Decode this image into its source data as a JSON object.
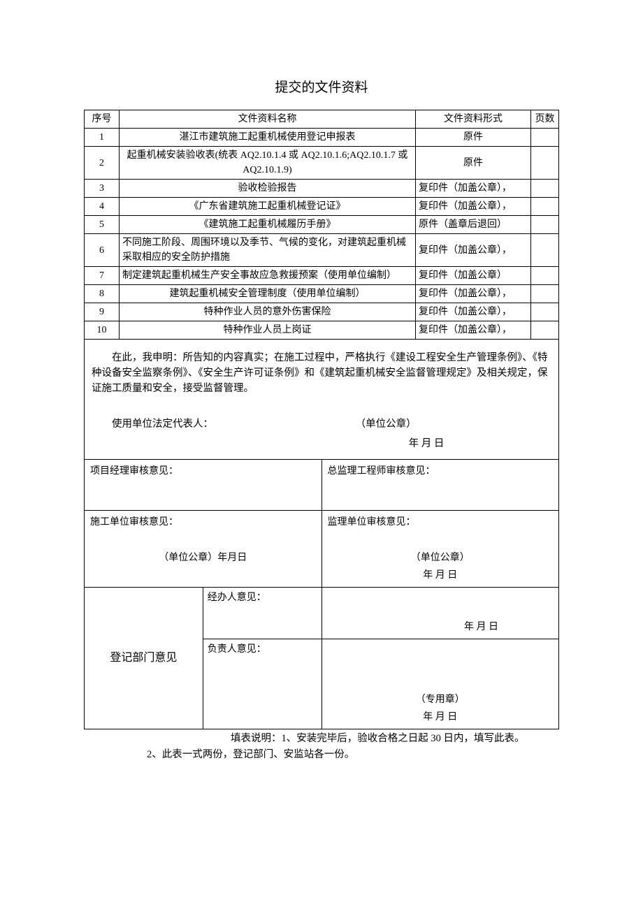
{
  "title": "提交的文件资料",
  "headers": {
    "seq": "序号",
    "name": "文件资料名称",
    "form": "文件资料形式",
    "pages": "页数"
  },
  "rows": [
    {
      "seq": "1",
      "name": "湛江市建筑施工起重机械使用登记申报表",
      "form": "原件",
      "form_align": "center",
      "pages": ""
    },
    {
      "seq": "2",
      "name": "起重机械安装验收表(统表 AQ2.10.1.4 或 AQ2.10.1.6;AQ2.10.1.7 或 AQ2.10.1.9)",
      "form": "原件",
      "form_align": "center",
      "pages": ""
    },
    {
      "seq": "3",
      "name": "验收检验报告",
      "form": "复印件（加盖公章），",
      "form_align": "left",
      "pages": ""
    },
    {
      "seq": "4",
      "name": "《广东省建筑施工起重机械登记证》",
      "form": "复印件（加盖公章），",
      "form_align": "left",
      "pages": ""
    },
    {
      "seq": "5",
      "name": "《建筑施工起重机械履历手册》",
      "form": "原件（盖章后退回）",
      "form_align": "left",
      "pages": ""
    },
    {
      "seq": "6",
      "name": "不同施工阶段、周围环境以及季节、气候的变化，对建筑起重机械采取相应的安全防护措施",
      "form": "复印件（加盖公章），",
      "form_align": "left",
      "name_align": "left",
      "pages": ""
    },
    {
      "seq": "7",
      "name": "制定建筑起重机械生产安全事故应急救援预案（使用单位编制）",
      "form": "复印件（加盖公章）",
      "form_align": "left",
      "name_align": "left",
      "pages": ""
    },
    {
      "seq": "8",
      "name": "建筑起重机械安全管理制度（使用单位编制）",
      "form": "复印件（加盖公章），",
      "form_align": "left",
      "pages": ""
    },
    {
      "seq": "9",
      "name": "特种作业人员的意外伤害保险",
      "form": "复印件（加盖公章），",
      "form_align": "left",
      "pages": ""
    },
    {
      "seq": "10",
      "name": "特种作业人员上岗证",
      "form": "复印件（加盖公章），",
      "form_align": "left",
      "pages": ""
    }
  ],
  "declaration": {
    "text": "在此，我申明：所告知的内容真实；在施工过程中，严格执行《建设工程安全生产管理条例》、《特种设备安全监察条例》、《安全生产许可证条例》和《建筑起重机械安全监督管理规定》及相关规定，保证施工质量和安全，接受监督管理。",
    "sig_label": "使用单位法定代表人：",
    "seal_label": "（单位公章）",
    "date": "年        月        日"
  },
  "opinions": {
    "pm": "项目经理审核意见：",
    "chief": "总监理工程师审核意见：",
    "construction": "施工单位审核意见：",
    "supervision": "监理单位审核意见：",
    "seal_date_left": "（单位公章）年月日",
    "seal_right": "（单位公章）",
    "date_right": "年        月        日"
  },
  "dept": {
    "label": "登记部门意见",
    "handler": "经办人意见：",
    "handler_date": "年        月        日",
    "leader": "负责人意见：",
    "special_seal": "（专用章）",
    "leader_date": "年        月        日"
  },
  "footnote": {
    "line1": "填表说明：1、安装完毕后，验收合格之日起 30 日内，填写此表。",
    "line2": "2、此表一式两份，登记部门、安监站各一份。"
  }
}
